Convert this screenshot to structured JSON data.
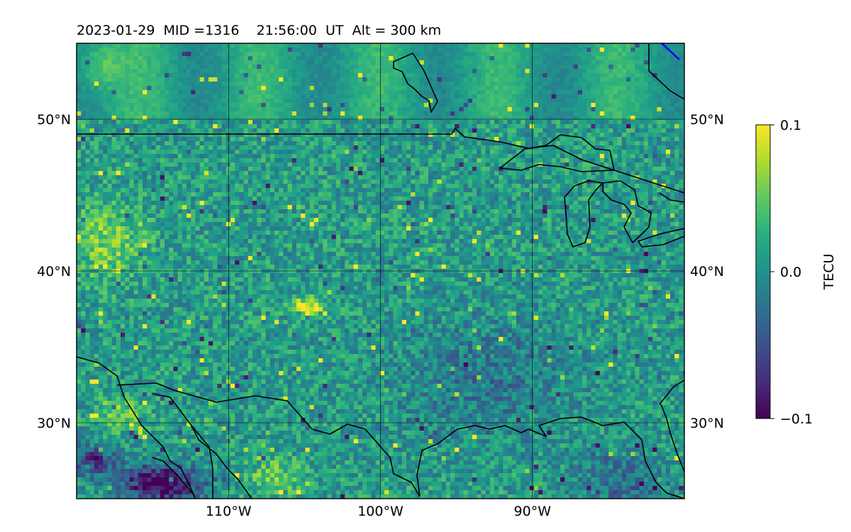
{
  "chart_data": {
    "type": "heatmap",
    "title": "2023-01-29  MID =1316    21:56:00  UT  Alt = 300 km",
    "xlabel": "",
    "ylabel": "",
    "x_range": [
      -120,
      -80
    ],
    "y_range": [
      25,
      55
    ],
    "x_tick_labels": [
      {
        "value": -110,
        "label": "110°W"
      },
      {
        "value": -100,
        "label": "100°W"
      },
      {
        "value": -90,
        "label": "90°W"
      }
    ],
    "y_tick_labels": [
      {
        "value": 50,
        "label": "50°N"
      },
      {
        "value": 40,
        "label": "40°N"
      },
      {
        "value": 30,
        "label": "30°N"
      }
    ],
    "grid": true,
    "colormap": "viridis",
    "colorbar": {
      "label": "TECU",
      "min": -0.1,
      "max": 0.1,
      "tick_labels": [
        {
          "value": 0.1,
          "label": "0.1"
        },
        {
          "value": 0.0,
          "label": "0.0"
        },
        {
          "value": -0.1,
          "label": "−0.1"
        }
      ],
      "placement": "right"
    },
    "notable_values": [
      {
        "region": "central Colorado/Kansas (~104°W, 38°N)",
        "value": 0.1
      },
      {
        "region": "northern Mexico (~114°W, 26°N)",
        "value": -0.1
      }
    ]
  },
  "colors": {
    "coast_lines": "#000000",
    "track_line": "#0000ff"
  }
}
